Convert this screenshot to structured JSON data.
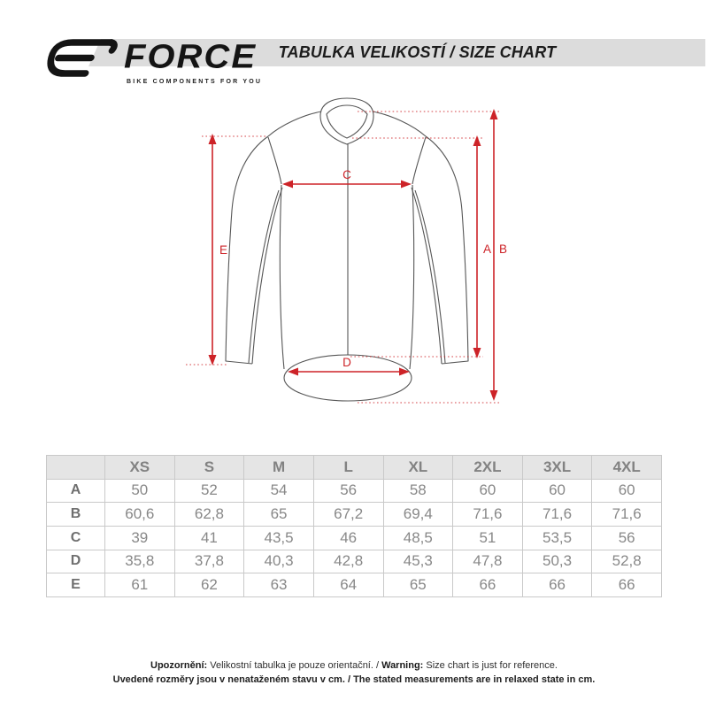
{
  "colors": {
    "accent": "#cd2328",
    "garment_outline": "#565656",
    "header_band": "#dcdcdc"
  },
  "header": {
    "brand": {
      "name": "FORCE",
      "tagline": "BIKE COMPONENTS FOR YOU"
    },
    "title": "TABULKA VELIKOSTÍ / SIZE CHART"
  },
  "diagram": {
    "garment": "long-sleeve cycling jersey, front view",
    "labels": {
      "a": "A",
      "b": "B",
      "c": "C",
      "d": "D",
      "e": "E"
    }
  },
  "table": {
    "corner_label": "",
    "sizes": [
      "XS",
      "S",
      "M",
      "L",
      "XL",
      "2XL",
      "3XL",
      "4XL"
    ],
    "rows": [
      {
        "label": "A",
        "values": [
          "50",
          "52",
          "54",
          "56",
          "58",
          "60",
          "60",
          "60"
        ]
      },
      {
        "label": "B",
        "values": [
          "60,6",
          "62,8",
          "65",
          "67,2",
          "69,4",
          "71,6",
          "71,6",
          "71,6"
        ]
      },
      {
        "label": "C",
        "values": [
          "39",
          "41",
          "43,5",
          "46",
          "48,5",
          "51",
          "53,5",
          "56"
        ]
      },
      {
        "label": "D",
        "values": [
          "35,8",
          "37,8",
          "40,3",
          "42,8",
          "45,3",
          "47,8",
          "50,3",
          "52,8"
        ]
      },
      {
        "label": "E",
        "values": [
          "61",
          "62",
          "63",
          "64",
          "65",
          "66",
          "66",
          "66"
        ]
      }
    ]
  },
  "footer": {
    "notice_cs_label": "Upozornění:",
    "notice_cs_text": " Velikostní tabulka je pouze orientační. / ",
    "notice_en_label": "Warning:",
    "notice_en_text": " Size chart is just for reference.",
    "line2": "Uvedené rozměry jsou v nenataženém stavu v cm. / The stated measurements are in relaxed state in cm."
  }
}
